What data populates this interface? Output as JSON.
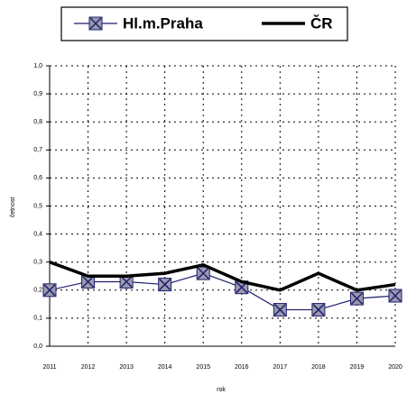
{
  "chart_data": {
    "type": "line",
    "categories": [
      "2011",
      "2012",
      "2013",
      "2014",
      "2015",
      "2016",
      "2017",
      "2018",
      "2019",
      "2020"
    ],
    "series": [
      {
        "name": "Hl.m.Praha",
        "color": "#1f1f6e",
        "marker": "square-x",
        "values": [
          0.2,
          0.23,
          0.23,
          0.22,
          0.26,
          0.21,
          0.13,
          0.13,
          0.17,
          0.18
        ]
      },
      {
        "name": "ČR",
        "color": "#000000",
        "values": [
          0.3,
          0.25,
          0.25,
          0.26,
          0.29,
          0.23,
          0.2,
          0.26,
          0.2,
          0.22
        ]
      }
    ],
    "ylim": [
      0,
      1
    ],
    "yticks": [
      {
        "value": 0,
        "label": "0,0"
      },
      {
        "value": 0.1,
        "label": "0,1"
      },
      {
        "value": 0.2,
        "label": "0,2"
      },
      {
        "value": 0.3,
        "label": "0,3"
      },
      {
        "value": 0.4,
        "label": "0,4"
      },
      {
        "value": 0.5,
        "label": "0,5"
      },
      {
        "value": 0.6,
        "label": "0,6"
      },
      {
        "value": 0.7,
        "label": "0,7"
      },
      {
        "value": 0.8,
        "label": "0,8"
      },
      {
        "value": 0.9,
        "label": "0,9"
      },
      {
        "value": 1,
        "label": "1,0"
      }
    ],
    "x_label": "rok",
    "y_label": "četnost",
    "grid": true,
    "legend": "top"
  }
}
